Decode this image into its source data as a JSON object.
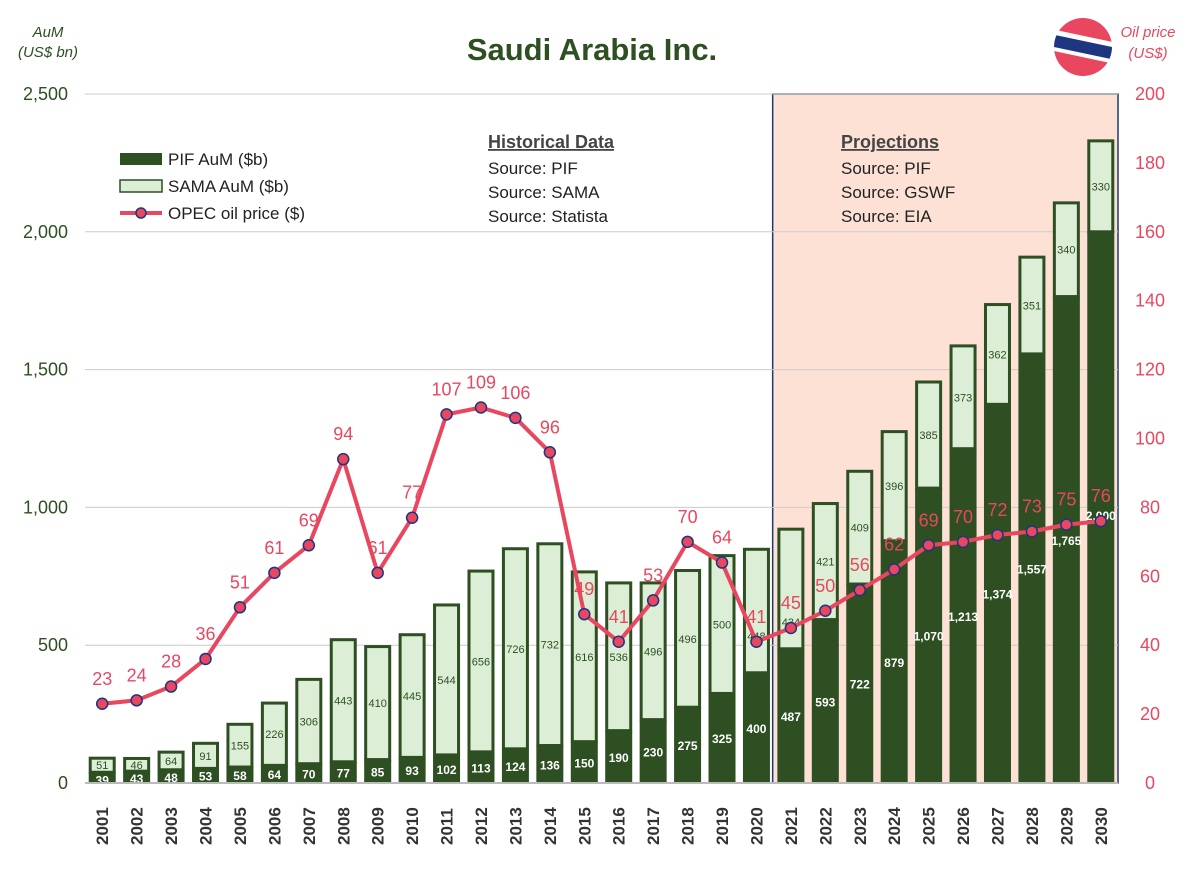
{
  "chart_data": {
    "type": "bar",
    "title": "Saudi Arabia Inc.",
    "ylabel_left": [
      "AuM",
      "(US$ bn)"
    ],
    "ylabel_right": [
      "Oil price",
      "(US$)"
    ],
    "ylim_left": [
      0,
      2500
    ],
    "ylim_right": [
      0,
      200
    ],
    "yticks_left": [
      "0",
      "500",
      "1,000",
      "1,500",
      "2,000",
      "2,500"
    ],
    "yticks_right": [
      "0",
      "20",
      "40",
      "60",
      "80",
      "100",
      "120",
      "140",
      "160",
      "180",
      "200"
    ],
    "grid": true,
    "legend_position": "top-left",
    "categories": [
      "2001",
      "2002",
      "2003",
      "2004",
      "2005",
      "2006",
      "2007",
      "2008",
      "2009",
      "2010",
      "2011",
      "2012",
      "2013",
      "2014",
      "2015",
      "2016",
      "2017",
      "2018",
      "2019",
      "2020",
      "2021",
      "2022",
      "2023",
      "2024",
      "2025",
      "2026",
      "2027",
      "2028",
      "2029",
      "2030"
    ],
    "series": [
      {
        "name": "PIF AuM ($b)",
        "type": "stacked-bar",
        "color": "#2d4f22",
        "values": [
          39,
          43,
          48,
          53,
          58,
          64,
          70,
          77,
          85,
          93,
          102,
          113,
          124,
          136,
          150,
          190,
          230,
          275,
          325,
          400,
          487,
          593,
          722,
          879,
          1070,
          1213,
          1374,
          1557,
          1765,
          2000
        ],
        "labels": [
          "39",
          "43",
          "48",
          "53",
          "58",
          "64",
          "70",
          "77",
          "85",
          "93",
          "102",
          "113",
          "124",
          "136",
          "150",
          "190",
          "230",
          "275",
          "325",
          "400",
          "487",
          "593",
          "722",
          "879",
          "1,070",
          "1,213",
          "1,374",
          "1,557",
          "1,765",
          "2,000"
        ]
      },
      {
        "name": "SAMA AuM ($b)",
        "type": "stacked-bar",
        "color": "#dcefd6",
        "values": [
          51,
          46,
          64,
          91,
          155,
          226,
          306,
          443,
          410,
          445,
          544,
          656,
          726,
          732,
          616,
          536,
          496,
          496,
          500,
          448,
          434,
          421,
          409,
          396,
          385,
          373,
          362,
          351,
          340,
          330
        ]
      },
      {
        "name": "OPEC oil price ($)",
        "type": "line",
        "axis": "right",
        "color": "#e8475f",
        "values": [
          23,
          24,
          28,
          36,
          51,
          61,
          69,
          94,
          61,
          77,
          107,
          109,
          106,
          96,
          49,
          41,
          53,
          70,
          64,
          41,
          45,
          50,
          56,
          62,
          69,
          70,
          72,
          73,
          75,
          76
        ]
      }
    ],
    "annotations": {
      "historical": {
        "title": "Historical Data",
        "lines": [
          "Source: PIF",
          "Source: SAMA",
          "Source: Statista"
        ]
      },
      "projections": {
        "title": "Projections",
        "lines": [
          "Source: PIF",
          "Source: GSWF",
          "Source: EIA"
        ],
        "from": "2021",
        "to": "2030",
        "shade": "#fce1d4"
      }
    }
  }
}
